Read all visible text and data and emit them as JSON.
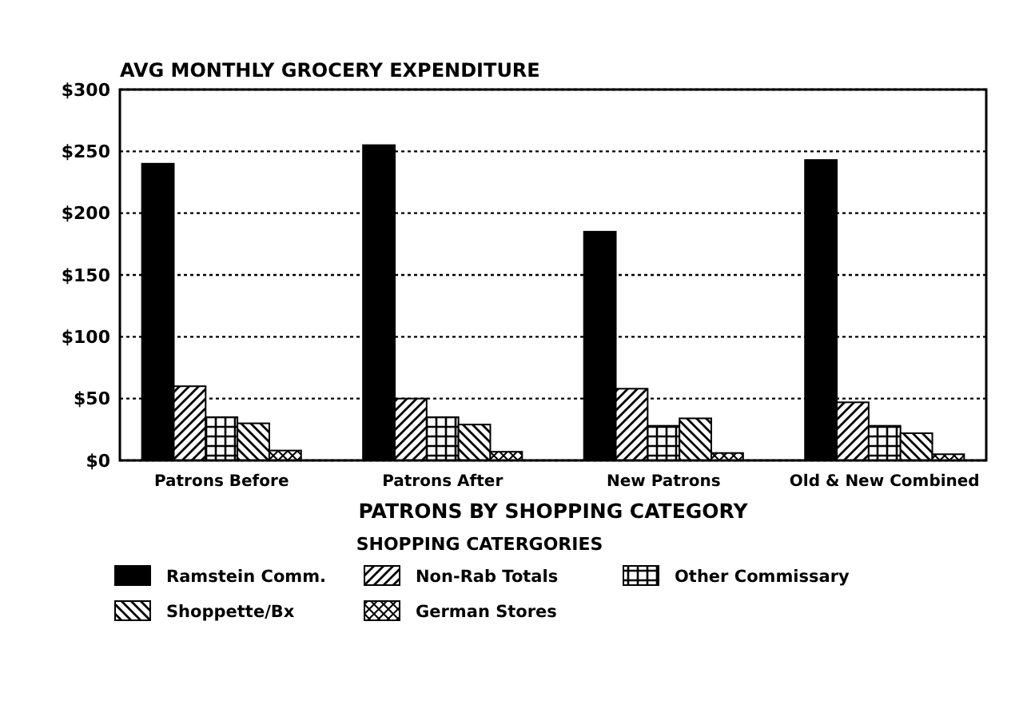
{
  "chart_data": {
    "type": "bar",
    "title": "AVG MONTHLY GROCERY EXPENDITURE",
    "xlabel": "PATRONS BY SHOPPING CATEGORY",
    "legend_title": "SHOPPING CATERGORIES",
    "categories": [
      "Patrons Before",
      "Patrons After",
      "New Patrons",
      "Old & New Combined"
    ],
    "series": [
      {
        "name": "Ramstein Comm.",
        "color": "#000000",
        "values": [
          240,
          255,
          185,
          243
        ]
      },
      {
        "name": "Non-Rab Totals",
        "color": "#000000",
        "values": [
          60,
          50,
          58,
          47
        ]
      },
      {
        "name": "Other Commissary",
        "color": "#000000",
        "values": [
          35,
          35,
          28,
          28
        ]
      },
      {
        "name": "Shoppette/Bx",
        "color": "#000000",
        "values": [
          30,
          29,
          34,
          22
        ]
      },
      {
        "name": "German Stores",
        "color": "#000000",
        "values": [
          8,
          7,
          6,
          5
        ]
      }
    ],
    "ylim": [
      0,
      300
    ],
    "yticks": [
      {
        "value": 0,
        "label": "$0"
      },
      {
        "value": 50,
        "label": "$50"
      },
      {
        "value": 100,
        "label": "$100"
      },
      {
        "value": 150,
        "label": "$150"
      },
      {
        "value": 200,
        "label": "$200"
      },
      {
        "value": 250,
        "label": "$250"
      },
      {
        "value": 300,
        "label": "$300"
      }
    ],
    "grid": "y",
    "legend": "bottom"
  }
}
